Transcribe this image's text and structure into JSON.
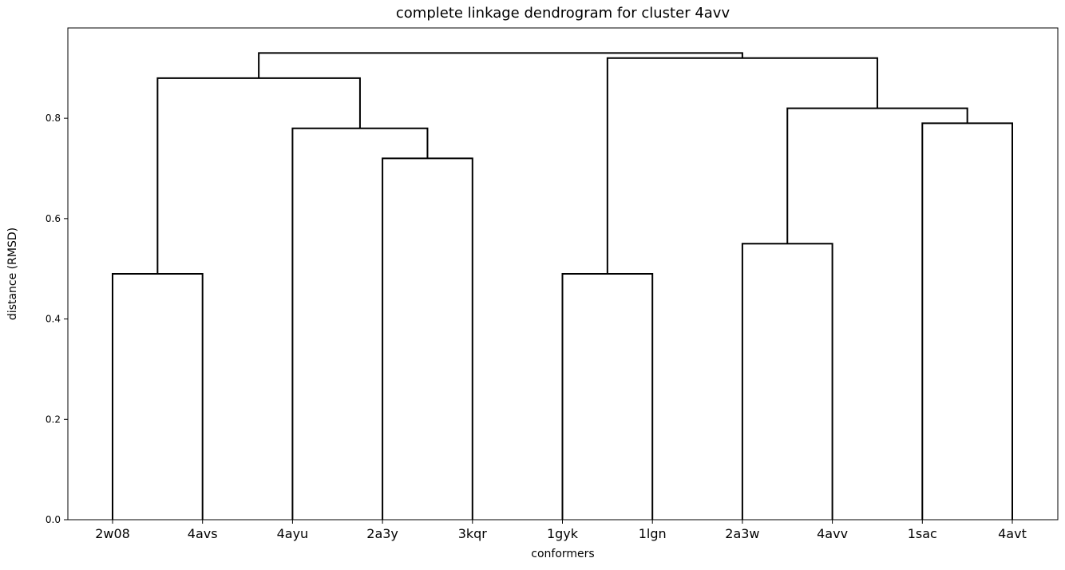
{
  "chart_data": {
    "type": "dendrogram",
    "title": "complete linkage dendrogram for cluster 4avv",
    "xlabel": "conformers",
    "ylabel": "distance (RMSD)",
    "leaves": [
      "2w08",
      "4avs",
      "4ayu",
      "2a3y",
      "3kqr",
      "1gyk",
      "1lgn",
      "2a3w",
      "4avv",
      "1sac",
      "4avt"
    ],
    "y_ticks": [
      "0.0",
      "0.2",
      "0.4",
      "0.6",
      "0.8"
    ],
    "ylim": [
      0,
      0.98
    ],
    "line_color": "#000000",
    "merges": [
      {
        "left": "2w08",
        "right": "4avs",
        "height": 0.49
      },
      {
        "left": "2a3y",
        "right": "3kqr",
        "height": 0.72
      },
      {
        "left": "4ayu",
        "right": "2a3y+3kqr",
        "height": 0.78
      },
      {
        "left": "2w08+4avs",
        "right": "4ayu+2a3y+3kqr",
        "height": 0.88
      },
      {
        "left": "1gyk",
        "right": "1lgn",
        "height": 0.49
      },
      {
        "left": "2a3w",
        "right": "4avv",
        "height": 0.55
      },
      {
        "left": "1sac",
        "right": "4avt",
        "height": 0.79
      },
      {
        "left": "2a3w+4avv",
        "right": "1sac+4avt",
        "height": 0.82
      },
      {
        "left": "1gyk+1lgn",
        "right": "2a3w+4avv+1sac+4avt",
        "height": 0.92
      },
      {
        "left": "2w08+4avs+4ayu+2a3y+3kqr",
        "right": "1gyk+1lgn+2a3w+4avv+1sac+4avt",
        "height": 0.93
      }
    ]
  }
}
